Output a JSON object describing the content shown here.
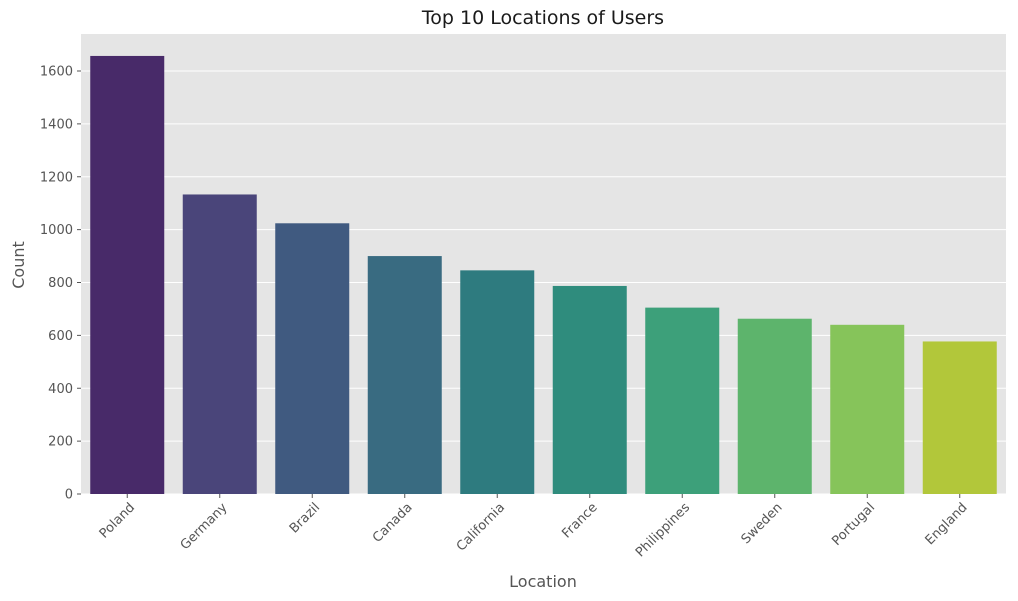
{
  "chart_data": {
    "type": "bar",
    "title": "Top 10 Locations of Users",
    "xlabel": "Location",
    "ylabel": "Count",
    "categories": [
      "Poland",
      "Germany",
      "Brazil",
      "Canada",
      "California",
      "France",
      "Philippines",
      "Sweden",
      "Portugal",
      "England"
    ],
    "values": [
      1657,
      1133,
      1024,
      900,
      846,
      787,
      705,
      663,
      640,
      577
    ],
    "colors": [
      "#482a69",
      "#4a457a",
      "#405a80",
      "#396b81",
      "#2e7b7f",
      "#2f8c7d",
      "#3da07a",
      "#5db46c",
      "#86c45a",
      "#b2c73a"
    ],
    "yticks": [
      0,
      200,
      400,
      600,
      800,
      1000,
      1200,
      1400,
      1600
    ],
    "ylim": [
      0,
      1740
    ],
    "grid": true,
    "x_tick_rotation": 45,
    "background": "#e5e5e5",
    "grid_color": "#ffffff"
  }
}
